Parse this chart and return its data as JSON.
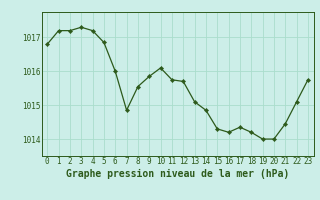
{
  "hours": [
    0,
    1,
    2,
    3,
    4,
    5,
    6,
    7,
    8,
    9,
    10,
    11,
    12,
    13,
    14,
    15,
    16,
    17,
    18,
    19,
    20,
    21,
    22,
    23
  ],
  "pressure": [
    1016.8,
    1017.2,
    1017.2,
    1017.3,
    1017.2,
    1016.85,
    1016.0,
    1014.85,
    1015.55,
    1015.85,
    1016.1,
    1015.75,
    1015.7,
    1015.1,
    1014.85,
    1014.3,
    1014.2,
    1014.35,
    1014.2,
    1014.0,
    1014.0,
    1014.45,
    1015.1,
    1015.75
  ],
  "line_color": "#2d5a1b",
  "marker_color": "#2d5a1b",
  "bg_color": "#cceee8",
  "grid_color": "#aaddcc",
  "xlabel_label": "Graphe pression niveau de la mer (hPa)",
  "xlabel_color": "#2d5a1b",
  "ylim": [
    1013.5,
    1017.75
  ],
  "yticks": [
    1014,
    1015,
    1016,
    1017
  ],
  "xticks": [
    0,
    1,
    2,
    3,
    4,
    5,
    6,
    7,
    8,
    9,
    10,
    11,
    12,
    13,
    14,
    15,
    16,
    17,
    18,
    19,
    20,
    21,
    22,
    23
  ],
  "tick_fontsize": 5.5,
  "xlabel_fontsize": 7.0,
  "border_color": "#2d5a1b"
}
